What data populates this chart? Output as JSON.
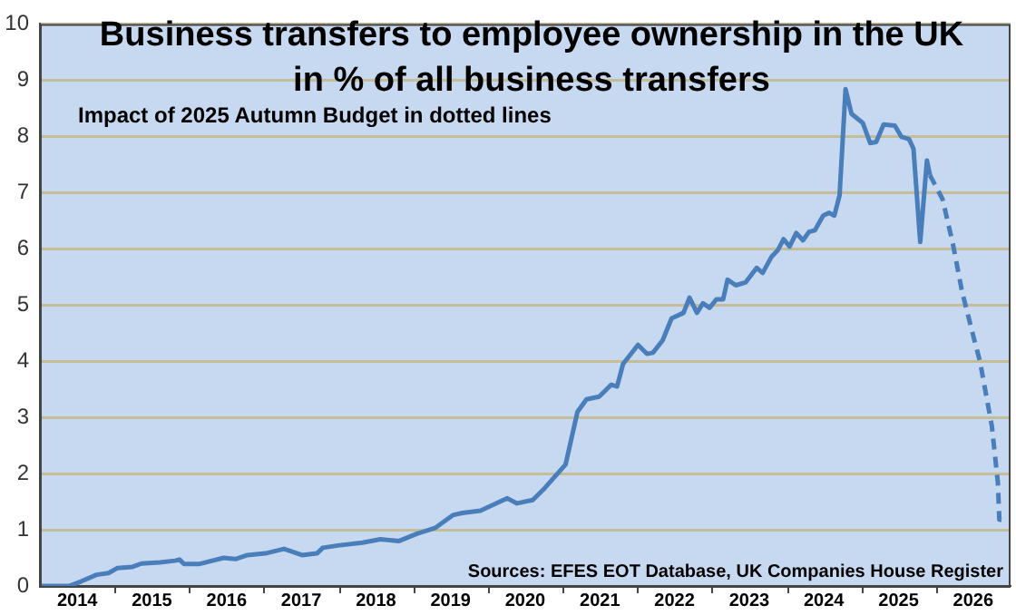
{
  "chart_data": {
    "type": "line",
    "title": "Business transfers to employee ownership in the UK\nin % of all business transfers",
    "subtitle": "Impact of 2025 Autumn Budget in dotted lines",
    "annotations": [
      "Sources: EFES EOT Database, UK Companies House Register"
    ],
    "series": [
      {
        "color": "#4a7ebb",
        "line_style": "solid",
        "x": [
          2014.0,
          2014.39,
          2014.55,
          2014.76,
          2014.92,
          2015.04,
          2015.24,
          2015.36,
          2015.61,
          2015.81,
          2015.87,
          2015.93,
          2016.13,
          2016.46,
          2016.62,
          2016.78,
          2017.02,
          2017.27,
          2017.51,
          2017.71,
          2017.79,
          2017.99,
          2018.32,
          2018.56,
          2018.81,
          2019.05,
          2019.29,
          2019.53,
          2019.66,
          2019.9,
          2020.26,
          2020.39,
          2020.6,
          2020.76,
          2021.04,
          2021.2,
          2021.32,
          2021.49,
          2021.65,
          2021.73,
          2021.81,
          2022.01,
          2022.13,
          2022.21,
          2022.34,
          2022.46,
          2022.62,
          2022.7,
          2022.8,
          2022.88,
          2022.97,
          2023.06,
          2023.15,
          2023.21,
          2023.32,
          2023.45,
          2023.6,
          2023.68,
          2023.8,
          2023.88,
          2023.96,
          2024.04,
          2024.13,
          2024.22,
          2024.3,
          2024.38,
          2024.49,
          2024.57,
          2024.64,
          2024.71,
          2024.79,
          2024.87,
          2025.02,
          2025.12,
          2025.2,
          2025.3,
          2025.45,
          2025.54,
          2025.64,
          2025.7,
          2025.79,
          2025.88,
          2025.92
        ],
        "values": [
          0,
          0,
          0.08,
          0.2,
          0.23,
          0.32,
          0.34,
          0.4,
          0.42,
          0.45,
          0.47,
          0.39,
          0.39,
          0.5,
          0.48,
          0.55,
          0.58,
          0.66,
          0.55,
          0.58,
          0.68,
          0.72,
          0.77,
          0.83,
          0.8,
          0.93,
          1.03,
          1.26,
          1.3,
          1.34,
          1.56,
          1.47,
          1.53,
          1.74,
          2.16,
          3.1,
          3.32,
          3.37,
          3.58,
          3.55,
          3.95,
          4.29,
          4.13,
          4.15,
          4.37,
          4.76,
          4.86,
          5.13,
          4.86,
          5.03,
          4.95,
          5.1,
          5.1,
          5.45,
          5.35,
          5.4,
          5.66,
          5.57,
          5.86,
          5.97,
          6.17,
          6.04,
          6.28,
          6.15,
          6.3,
          6.33,
          6.59,
          6.64,
          6.59,
          6.95,
          8.84,
          8.4,
          8.24,
          7.88,
          7.9,
          8.21,
          8.19,
          7.99,
          7.95,
          7.78,
          6.12,
          7.57,
          7.31
        ]
      },
      {
        "color": "#4a7ebb",
        "line_style": "dashed",
        "x": [
          2025.92,
          2026.09,
          2026.23,
          2026.35,
          2026.51,
          2026.59,
          2026.75,
          2026.83,
          2026.85,
          2026.95
        ],
        "values": [
          7.31,
          6.88,
          6.07,
          5.24,
          4.4,
          4.0,
          2.84,
          1.84,
          1.18,
          1.16
        ]
      }
    ],
    "xlim": [
      2014,
      2027
    ],
    "xticks": [
      {
        "value": 2014.5,
        "label": "2014"
      },
      {
        "value": 2015,
        "label": null
      },
      {
        "value": 2015.5,
        "label": "2015"
      },
      {
        "value": 2016,
        "label": null
      },
      {
        "value": 2016.5,
        "label": "2016"
      },
      {
        "value": 2017,
        "label": null
      },
      {
        "value": 2017.5,
        "label": "2017"
      },
      {
        "value": 2018,
        "label": null
      },
      {
        "value": 2018.5,
        "label": "2018"
      },
      {
        "value": 2019,
        "label": null
      },
      {
        "value": 2019.5,
        "label": "2019"
      },
      {
        "value": 2020,
        "label": null
      },
      {
        "value": 2020.5,
        "label": "2020"
      },
      {
        "value": 2021,
        "label": null
      },
      {
        "value": 2021.5,
        "label": "2021"
      },
      {
        "value": 2022,
        "label": null
      },
      {
        "value": 2022.5,
        "label": "2022"
      },
      {
        "value": 2023,
        "label": null
      },
      {
        "value": 2023.5,
        "label": "2023"
      },
      {
        "value": 2024,
        "label": null
      },
      {
        "value": 2024.5,
        "label": "2024"
      },
      {
        "value": 2025,
        "label": null
      },
      {
        "value": 2025.5,
        "label": "2025"
      },
      {
        "value": 2026,
        "label": null
      },
      {
        "value": 2026.5,
        "label": "2026"
      }
    ],
    "ylim": [
      0,
      10
    ],
    "yticks": [
      0,
      1,
      2,
      3,
      4,
      5,
      6,
      7,
      8,
      9,
      10
    ],
    "grid": "y",
    "legend": false,
    "marker": "none"
  }
}
